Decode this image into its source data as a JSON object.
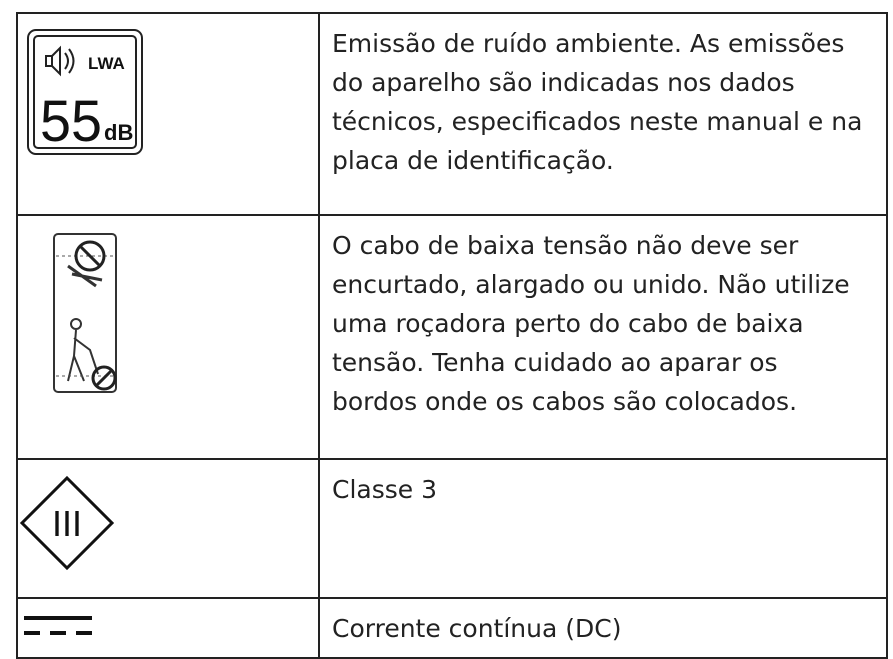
{
  "table": {
    "rows": [
      {
        "icon": {
          "label": "LWA",
          "value": "55",
          "unit": "dB"
        },
        "text": "Emissão de ruído ambiente. As emissões do aparelho são indicadas nos dados técnicos, especificados neste manual e na placa de identificação."
      },
      {
        "text": "O cabo de baixa tensão não deve ser encurtado, alargado ou unido. Não utilize uma roçadora perto do cabo de baixa tensão. Tenha cuidado ao aparar os bordos onde os cabos são colocados."
      },
      {
        "icon": {
          "label": "III"
        },
        "text": "Classe 3"
      },
      {
        "text": "Corrente contínua (DC)"
      }
    ]
  }
}
